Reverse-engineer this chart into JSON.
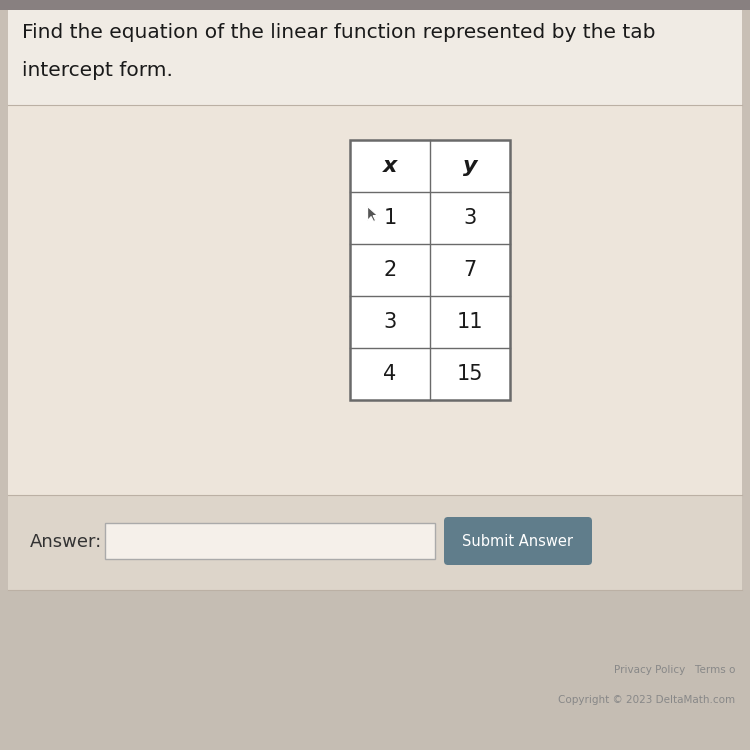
{
  "title_line1": "Find the equation of the linear function represented by the tab",
  "title_line2": "intercept form.",
  "bg_color_outer": "#c8bfb5",
  "bg_color_top": "#f0ebe4",
  "bg_color_content": "#ede5db",
  "bg_color_answer": "#ddd5ca",
  "bg_color_footer": "#c5bdb3",
  "table_x_values": [
    "x",
    "1",
    "2",
    "3",
    "4"
  ],
  "table_y_values": [
    "y",
    "3",
    "7",
    "11",
    "15"
  ],
  "table_border_color": "#6a6a6a",
  "answer_label": "Answer:",
  "submit_btn_text": "Submit Answer",
  "submit_btn_color": "#607d8b",
  "submit_btn_text_color": "#ffffff",
  "footer_text1": "Privacy Policy   Terms o",
  "footer_text2": "Copyright © 2023 DeltaMath.com",
  "title_fontsize": 14.5,
  "table_fontsize": 15,
  "answer_fontsize": 13
}
